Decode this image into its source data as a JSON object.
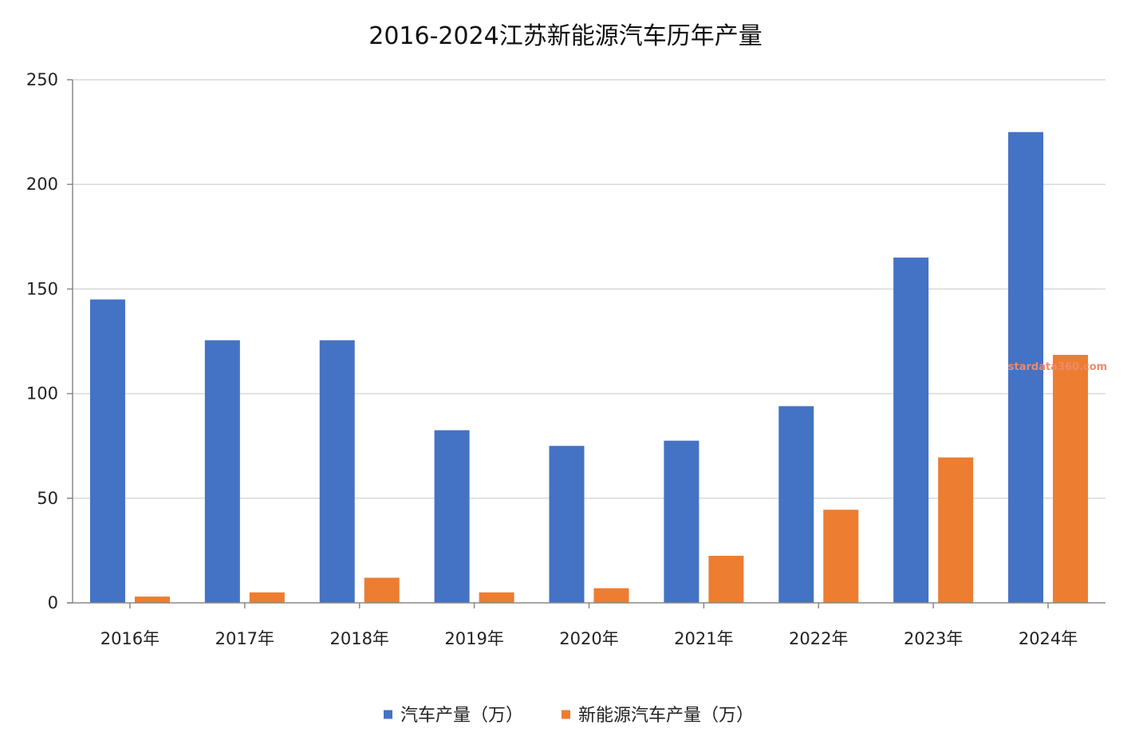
{
  "chart_data": {
    "type": "bar",
    "title": "2016-2024江苏新能源汽车历年产量",
    "categories": [
      "2016年",
      "2017年",
      "2018年",
      "2019年",
      "2020年",
      "2021年",
      "2022年",
      "2023年",
      "2024年"
    ],
    "series": [
      {
        "name": "汽车产量（万）",
        "color": "#4472c4",
        "values": [
          145,
          125.5,
          125.5,
          82.5,
          75,
          77.5,
          94,
          165,
          225
        ]
      },
      {
        "name": "新能源汽车产量（万）",
        "color": "#ed7d31",
        "values": [
          3,
          5,
          12,
          5,
          7,
          22.5,
          44.5,
          69.5,
          118.5
        ]
      }
    ],
    "yticks": [
      0,
      50,
      100,
      150,
      200,
      250
    ],
    "ylim": [
      0,
      250
    ],
    "grid": true,
    "legend_position": "bottom-center",
    "watermark": "stardata360.com"
  }
}
